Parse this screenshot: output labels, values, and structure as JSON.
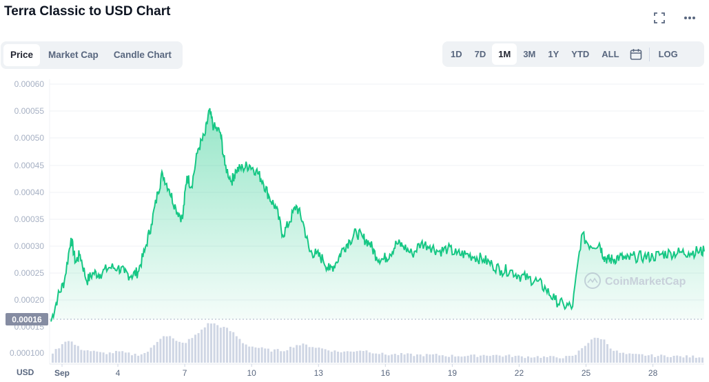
{
  "title": "Terra Classic to USD Chart",
  "tabs": [
    "Price",
    "Market Cap",
    "Candle Chart"
  ],
  "ranges": [
    "1D",
    "7D",
    "1M",
    "3M",
    "1Y",
    "YTD",
    "ALL",
    "LOG"
  ],
  "active_tab": "Price",
  "active_range": "1M",
  "icons": [
    "fullscreen-icon",
    "more-options-icon",
    "calendar-icon"
  ],
  "watermark": "CoinMarketCap",
  "colors": {
    "line": "#16c784",
    "volume": "#cfd6e4",
    "grid": "#eff2f5",
    "price_tag": "#858ca2"
  },
  "chart_data": {
    "type": "area",
    "currency_label": "USD",
    "current_price_label": "0.00016",
    "y_ticks": [
      "0.00060",
      "0.00055",
      "0.00050",
      "0.00045",
      "0.00040",
      "0.00035",
      "0.00030",
      "0.00025",
      "0.00020",
      "0.00015",
      "0.000100"
    ],
    "x_ticks": [
      "Sep",
      "4",
      "7",
      "10",
      "13",
      "16",
      "19",
      "22",
      "25",
      "28"
    ],
    "ylim": [
      0.00015,
      0.0006
    ],
    "x": [
      1.0,
      1.3,
      1.6,
      1.9,
      2.1,
      2.3,
      2.6,
      2.9,
      3.2,
      3.6,
      4.0,
      4.3,
      4.6,
      4.9,
      5.2,
      5.5,
      5.8,
      6.0,
      6.3,
      6.6,
      6.9,
      7.1,
      7.3,
      7.6,
      7.9,
      8.1,
      8.3,
      8.6,
      8.8,
      9.1,
      9.3,
      9.6,
      9.9,
      10.2,
      10.5,
      10.8,
      11.1,
      11.4,
      11.7,
      12.0,
      12.3,
      12.6,
      12.9,
      13.2,
      13.5,
      13.8,
      14.1,
      14.4,
      14.7,
      15.0,
      15.3,
      15.6,
      15.9,
      16.2,
      16.5,
      16.8,
      17.2,
      17.6,
      18.0,
      18.4,
      18.8,
      19.2,
      19.6,
      20.0,
      20.4,
      20.8,
      21.2,
      21.6,
      22.0,
      22.4,
      22.8,
      23.2,
      23.6,
      24.0,
      24.4,
      24.8,
      25.2,
      25.6,
      25.8,
      26.0,
      26.2,
      26.5,
      26.8,
      27.2,
      27.6,
      28.0,
      28.4,
      28.8,
      29.2,
      29.6,
      30.0,
      30.3
    ],
    "y": [
      0.00016,
      0.000205,
      0.000235,
      0.000315,
      0.00027,
      0.000285,
      0.000235,
      0.00025,
      0.000248,
      0.00026,
      0.00026,
      0.00025,
      0.000245,
      0.000252,
      0.00029,
      0.00034,
      0.0004,
      0.000435,
      0.000405,
      0.00037,
      0.00035,
      0.00043,
      0.00041,
      0.00048,
      0.000505,
      0.00055,
      0.00052,
      0.00051,
      0.00045,
      0.00042,
      0.00044,
      0.000445,
      0.00045,
      0.00044,
      0.00042,
      0.00039,
      0.00037,
      0.00032,
      0.000345,
      0.000375,
      0.000345,
      0.00029,
      0.000285,
      0.000275,
      0.000255,
      0.00027,
      0.000295,
      0.00031,
      0.000325,
      0.000315,
      0.000305,
      0.00028,
      0.000275,
      0.000285,
      0.000305,
      0.0003,
      0.000285,
      0.000305,
      0.0003,
      0.00029,
      0.000295,
      0.000285,
      0.000285,
      0.00028,
      0.000275,
      0.000265,
      0.000255,
      0.000255,
      0.000245,
      0.00024,
      0.000235,
      0.00022,
      0.0002,
      0.00019,
      0.000188,
      0.00032,
      0.0003,
      0.000305,
      0.00028,
      0.000275,
      0.000275,
      0.00028,
      0.000275,
      0.00028,
      0.00028,
      0.00028,
      0.000285,
      0.000287,
      0.000288,
      0.000288,
      0.00029,
      0.00029
    ],
    "volume_relative": [
      0.35,
      0.55,
      0.8,
      0.75,
      0.6,
      0.5,
      0.45,
      0.4,
      0.35,
      0.35,
      0.4,
      0.35,
      0.3,
      0.3,
      0.35,
      0.55,
      0.85,
      1.0,
      0.95,
      0.75,
      0.7,
      0.8,
      0.9,
      1.1,
      1.35,
      1.45,
      1.4,
      1.3,
      1.25,
      1.1,
      0.95,
      0.7,
      0.6,
      0.55,
      0.5,
      0.45,
      0.45,
      0.45,
      0.55,
      0.65,
      0.65,
      0.6,
      0.55,
      0.5,
      0.45,
      0.4,
      0.4,
      0.4,
      0.45,
      0.45,
      0.4,
      0.35,
      0.3,
      0.3,
      0.3,
      0.3,
      0.28,
      0.28,
      0.28,
      0.28,
      0.25,
      0.25,
      0.25,
      0.25,
      0.28,
      0.28,
      0.25,
      0.25,
      0.22,
      0.22,
      0.22,
      0.2,
      0.2,
      0.2,
      0.22,
      0.55,
      0.85,
      0.9,
      0.8,
      0.6,
      0.45,
      0.35,
      0.3,
      0.28,
      0.28,
      0.25,
      0.25,
      0.25,
      0.22,
      0.22,
      0.22,
      0.22
    ]
  }
}
